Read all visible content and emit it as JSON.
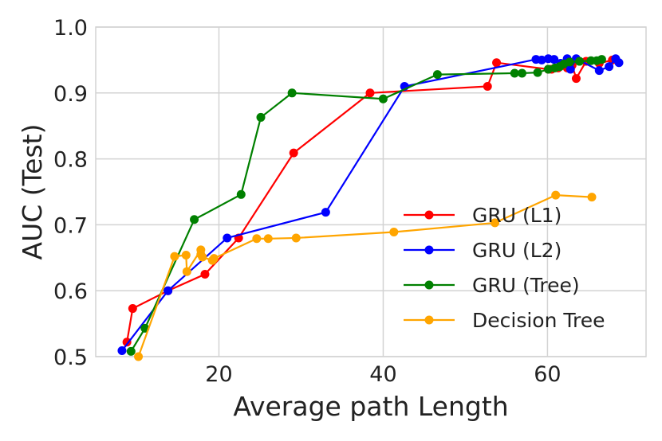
{
  "chart_data": {
    "type": "line",
    "title": "",
    "xlabel": "Average path Length",
    "ylabel": "AUC (Test)",
    "xlim": [
      5,
      72
    ],
    "ylim": [
      0.5,
      1.0
    ],
    "xticks": [
      20,
      40,
      60
    ],
    "yticks": [
      0.5,
      0.6,
      0.7,
      0.8,
      0.9,
      1.0
    ],
    "xtick_labels": [
      "20",
      "40",
      "60"
    ],
    "ytick_labels": [
      "0.5",
      "0.6",
      "0.7",
      "0.8",
      "0.9",
      "1.0"
    ],
    "grid": true,
    "legend_position": "lower-right",
    "series": [
      {
        "name": "GRU (L1)",
        "color": "#ff0000",
        "x": [
          8.8,
          9.5,
          13.8,
          18.3,
          22.4,
          29.1,
          38.4,
          52.7,
          53.8,
          60.1,
          60.5,
          61.3,
          62.4,
          63.0,
          63.5,
          64.7,
          66.3,
          67.9
        ],
        "y": [
          0.522,
          0.573,
          0.6,
          0.625,
          0.68,
          0.809,
          0.9,
          0.91,
          0.946,
          0.936,
          0.936,
          0.938,
          0.938,
          0.942,
          0.922,
          0.948,
          0.945,
          0.95
        ]
      },
      {
        "name": "GRU (L2)",
        "color": "#0000ff",
        "x": [
          8.2,
          13.8,
          21.0,
          33.0,
          42.6,
          58.6,
          59.3,
          60.1,
          60.8,
          61.6,
          62.4,
          62.8,
          63.5,
          66.3,
          67.5,
          68.3,
          68.7
        ],
        "y": [
          0.509,
          0.6,
          0.68,
          0.719,
          0.91,
          0.951,
          0.95,
          0.952,
          0.951,
          0.945,
          0.952,
          0.936,
          0.952,
          0.934,
          0.94,
          0.952,
          0.946
        ]
      },
      {
        "name": "GRU (Tree)",
        "color": "#008000",
        "x": [
          9.3,
          11.0,
          17.0,
          22.7,
          25.1,
          28.9,
          40.0,
          46.6,
          56.0,
          56.9,
          58.8,
          60.1,
          60.9,
          61.5,
          62.0,
          62.7,
          63.9,
          65.3,
          66.0,
          66.6
        ],
        "y": [
          0.508,
          0.543,
          0.708,
          0.746,
          0.863,
          0.9,
          0.891,
          0.928,
          0.93,
          0.93,
          0.931,
          0.936,
          0.938,
          0.94,
          0.944,
          0.947,
          0.948,
          0.949,
          0.949,
          0.951
        ]
      },
      {
        "name": "Decision Tree",
        "color": "#ffa500",
        "x": [
          10.2,
          14.6,
          16.0,
          16.1,
          17.8,
          17.8,
          18.0,
          19.2,
          19.4,
          24.6,
          26.0,
          29.4,
          41.3,
          53.6,
          61.0,
          65.4
        ],
        "y": [
          0.5,
          0.652,
          0.654,
          0.629,
          0.662,
          0.655,
          0.651,
          0.646,
          0.649,
          0.679,
          0.679,
          0.68,
          0.689,
          0.703,
          0.745,
          0.742
        ]
      }
    ]
  }
}
